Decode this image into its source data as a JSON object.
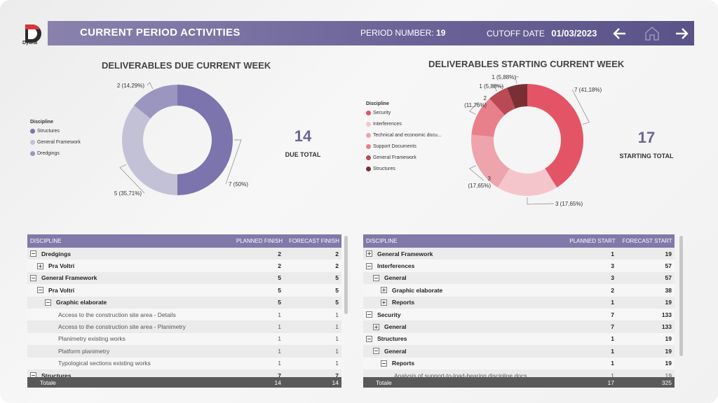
{
  "header": {
    "logo_text": "Dyana",
    "title": "CURRENT PERIOD ACTIVITIES",
    "period_label": "PERIOD NUMBER:",
    "period_value": "19",
    "cutoff_label": "CUTOFF DATE",
    "cutoff_value": "01/03/2023",
    "icons": [
      "arrow-left-icon",
      "home-icon",
      "arrow-right-icon"
    ]
  },
  "due": {
    "title": "DELIVERABLES DUE CURRENT WEEK",
    "kpi_value": "14",
    "kpi_label": "DUE TOTAL",
    "legend_title": "Discipline",
    "legend": [
      {
        "label": "Structures",
        "color": "#7b74ad"
      },
      {
        "label": "General Framework",
        "color": "#c3c1d6"
      },
      {
        "label": "Dredgings",
        "color": "#9b96c0"
      }
    ],
    "chart_data": {
      "type": "pie",
      "slices": [
        {
          "label": "Structures",
          "value": 7,
          "text": "7 (50%)",
          "color": "#7b74ad"
        },
        {
          "label": "General Framework",
          "value": 5,
          "text": "5 (35,71%)",
          "color": "#c3c1d6"
        },
        {
          "label": "Dredgings",
          "value": 2,
          "text": "2 (14,29%)",
          "color": "#9b96c0"
        }
      ]
    }
  },
  "starting": {
    "title": "DELIVERABLES STARTING CURRENT WEEK",
    "kpi_value": "17",
    "kpi_label": "STARTING TOTAL",
    "legend_title": "Discipline",
    "legend": [
      {
        "label": "Security",
        "color": "#e35566"
      },
      {
        "label": "Interferences",
        "color": "#f4c6cb"
      },
      {
        "label": "Technical and economic docu...",
        "color": "#eea4ac"
      },
      {
        "label": "Support Documents",
        "color": "#e8808c"
      },
      {
        "label": "General Framework",
        "color": "#b94a54"
      },
      {
        "label": "Structures",
        "color": "#7a2f35"
      }
    ],
    "chart_data": {
      "type": "pie",
      "slices": [
        {
          "label": "Security",
          "value": 7,
          "text": "7 (41,18%)",
          "color": "#e35566"
        },
        {
          "label": "Interferences",
          "value": 3,
          "text": "3 (17,65%)",
          "color": "#f4c6cb"
        },
        {
          "label": "Technical and economic docu...",
          "value": 3,
          "text": "3\n(17,65%)",
          "color": "#eea4ac"
        },
        {
          "label": "Support Documents",
          "value": 2,
          "text": "2\n(11,76%)",
          "color": "#e8808c"
        },
        {
          "label": "General Framework",
          "value": 1,
          "text": "1 (5,88%)",
          "color": "#b94a54"
        },
        {
          "label": "Structures",
          "value": 1,
          "text": "1 (5,88%)",
          "color": "#7a2f35"
        }
      ]
    }
  },
  "table_due": {
    "headers": [
      "DISCIPLINE",
      "PLANNED FINISH",
      "FORECAST FINISH"
    ],
    "rows": [
      {
        "label": "Dredgings",
        "level": 0,
        "exp": "minus",
        "bold": true,
        "a": "2",
        "b": "2"
      },
      {
        "label": "Pra Voltri",
        "level": 1,
        "exp": "plus",
        "bold": true,
        "a": "2",
        "b": "2"
      },
      {
        "label": "General Framework",
        "level": 0,
        "exp": "minus",
        "bold": true,
        "a": "5",
        "b": "5"
      },
      {
        "label": "Pra Voltri",
        "level": 1,
        "exp": "minus",
        "bold": true,
        "a": "5",
        "b": "5"
      },
      {
        "label": "Graphic elaborate",
        "level": 2,
        "exp": "minus",
        "bold": true,
        "a": "5",
        "b": "5"
      },
      {
        "label": "Access to the construction site area - Details",
        "level": 3,
        "exp": "",
        "bold": false,
        "a": "1",
        "b": "1"
      },
      {
        "label": "Access to the construction site area - Planimetry",
        "level": 3,
        "exp": "",
        "bold": false,
        "a": "1",
        "b": "1"
      },
      {
        "label": "Planimetry existing works",
        "level": 3,
        "exp": "",
        "bold": false,
        "a": "1",
        "b": "1"
      },
      {
        "label": "Platform planimetry",
        "level": 3,
        "exp": "",
        "bold": false,
        "a": "1",
        "b": "1"
      },
      {
        "label": "Typological sections existing works",
        "level": 3,
        "exp": "",
        "bold": false,
        "a": "1",
        "b": "1"
      },
      {
        "label": "Structures",
        "level": 0,
        "exp": "minus",
        "bold": true,
        "a": "7",
        "b": "7"
      }
    ],
    "total": {
      "label": "Totale",
      "a": "14",
      "b": "14"
    }
  },
  "table_start": {
    "headers": [
      "DISCIPLINE",
      "PLANNED START",
      "FORECAST START"
    ],
    "rows": [
      {
        "label": "General Framework",
        "level": 0,
        "exp": "plus",
        "bold": true,
        "a": "1",
        "b": "19"
      },
      {
        "label": "Interferences",
        "level": 0,
        "exp": "minus",
        "bold": true,
        "a": "3",
        "b": "57"
      },
      {
        "label": "General",
        "level": 1,
        "exp": "minus",
        "bold": true,
        "a": "3",
        "b": "57"
      },
      {
        "label": "Graphic elaborate",
        "level": 2,
        "exp": "plus",
        "bold": true,
        "a": "2",
        "b": "38"
      },
      {
        "label": "Reports",
        "level": 2,
        "exp": "plus",
        "bold": true,
        "a": "1",
        "b": "19"
      },
      {
        "label": "Security",
        "level": 0,
        "exp": "minus",
        "bold": true,
        "a": "7",
        "b": "133"
      },
      {
        "label": "General",
        "level": 1,
        "exp": "plus",
        "bold": true,
        "a": "7",
        "b": "133"
      },
      {
        "label": "Structures",
        "level": 0,
        "exp": "minus",
        "bold": true,
        "a": "1",
        "b": "19"
      },
      {
        "label": "General",
        "level": 1,
        "exp": "minus",
        "bold": true,
        "a": "1",
        "b": "19"
      },
      {
        "label": "Reports",
        "level": 2,
        "exp": "minus",
        "bold": true,
        "a": "1",
        "b": "19"
      },
      {
        "label": "Analysis of support-to-load-bearing discipline docs",
        "level": 3,
        "exp": "",
        "bold": false,
        "a": "1",
        "b": "19"
      }
    ],
    "total": {
      "label": "Totale",
      "a": "17",
      "b": "325"
    }
  }
}
